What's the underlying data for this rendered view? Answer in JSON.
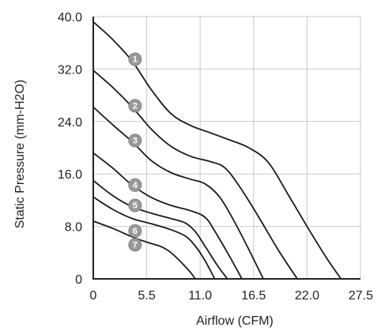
{
  "chart_data": {
    "type": "line",
    "xlabel": "Airflow (CFM)",
    "ylabel": "Static Pressure (mm-H2O)",
    "xlim": [
      0,
      27.5
    ],
    "ylim": [
      0,
      40
    ],
    "x_ticks": [
      "0",
      "5.5",
      "11.0",
      "16.5",
      "22.0",
      "27.5"
    ],
    "y_ticks": [
      "0",
      "8.0",
      "16.0",
      "24.0",
      "32.0",
      "40.0"
    ],
    "x_tick_values": [
      0,
      5.5,
      11,
      16.5,
      22,
      27.5
    ],
    "y_tick_values": [
      0,
      8,
      16,
      24,
      32,
      40
    ],
    "grid": true,
    "series": [
      {
        "marker": "1",
        "marker_at": [
          4.3,
          33.5
        ],
        "points": [
          [
            0,
            39.2
          ],
          [
            2,
            36.5
          ],
          [
            4,
            33.2
          ],
          [
            6,
            28.8
          ],
          [
            8,
            25.2
          ],
          [
            10,
            23.4
          ],
          [
            12,
            22.3
          ],
          [
            14,
            21.2
          ],
          [
            16,
            20.0
          ],
          [
            18,
            17.8
          ],
          [
            20,
            13.0
          ],
          [
            22,
            8.0
          ],
          [
            24,
            3.2
          ],
          [
            25.5,
            0
          ]
        ]
      },
      {
        "marker": "2",
        "marker_at": [
          4.3,
          26.4
        ],
        "points": [
          [
            0,
            31.8
          ],
          [
            2,
            29.2
          ],
          [
            4,
            26.2
          ],
          [
            6,
            22.8
          ],
          [
            8,
            20.2
          ],
          [
            10,
            18.7
          ],
          [
            12,
            17.9
          ],
          [
            13.5,
            17.0
          ],
          [
            15,
            14.2
          ],
          [
            17,
            9.5
          ],
          [
            19,
            4.5
          ],
          [
            21,
            0
          ]
        ]
      },
      {
        "marker": "3",
        "marker_at": [
          4.3,
          21.1
        ],
        "points": [
          [
            0,
            26.2
          ],
          [
            2,
            23.5
          ],
          [
            4,
            20.9
          ],
          [
            6,
            18.0
          ],
          [
            8,
            16.2
          ],
          [
            10,
            15.2
          ],
          [
            11.5,
            14.5
          ],
          [
            13,
            12.5
          ],
          [
            14.5,
            8.8
          ],
          [
            16,
            4.5
          ],
          [
            17.5,
            0
          ]
        ]
      },
      {
        "marker": "4",
        "marker_at": [
          4.3,
          14.3
        ],
        "points": [
          [
            0,
            19.2
          ],
          [
            2,
            16.9
          ],
          [
            4,
            14.3
          ],
          [
            6,
            12.4
          ],
          [
            8,
            11.2
          ],
          [
            10,
            10.4
          ],
          [
            11.5,
            9.4
          ],
          [
            12.5,
            7.3
          ],
          [
            14,
            3.5
          ],
          [
            15.3,
            0
          ]
        ]
      },
      {
        "marker": "5",
        "marker_at": [
          4.3,
          11.2
        ],
        "points": [
          [
            0,
            15.0
          ],
          [
            2,
            12.7
          ],
          [
            4,
            11.0
          ],
          [
            6,
            10.0
          ],
          [
            8,
            9.2
          ],
          [
            9.5,
            8.5
          ],
          [
            10.5,
            7.2
          ],
          [
            11.5,
            5.0
          ],
          [
            12.8,
            2.0
          ],
          [
            13.8,
            0
          ]
        ]
      },
      {
        "marker": "6",
        "marker_at": [
          4.3,
          7.3
        ],
        "points": [
          [
            0,
            12.5
          ],
          [
            2,
            10.6
          ],
          [
            4,
            9.2
          ],
          [
            6,
            8.4
          ],
          [
            8,
            7.5
          ],
          [
            9.5,
            6.5
          ],
          [
            10.5,
            5.0
          ],
          [
            11.5,
            2.8
          ],
          [
            12.5,
            0
          ]
        ]
      },
      {
        "marker": "7",
        "marker_at": [
          4.3,
          5.2
        ],
        "points": [
          [
            0,
            8.8
          ],
          [
            2,
            7.7
          ],
          [
            4,
            6.4
          ],
          [
            5.5,
            5.6
          ],
          [
            7,
            4.9
          ],
          [
            8,
            4.0
          ],
          [
            9,
            2.6
          ],
          [
            10,
            1.0
          ],
          [
            10.5,
            0
          ]
        ]
      }
    ]
  }
}
